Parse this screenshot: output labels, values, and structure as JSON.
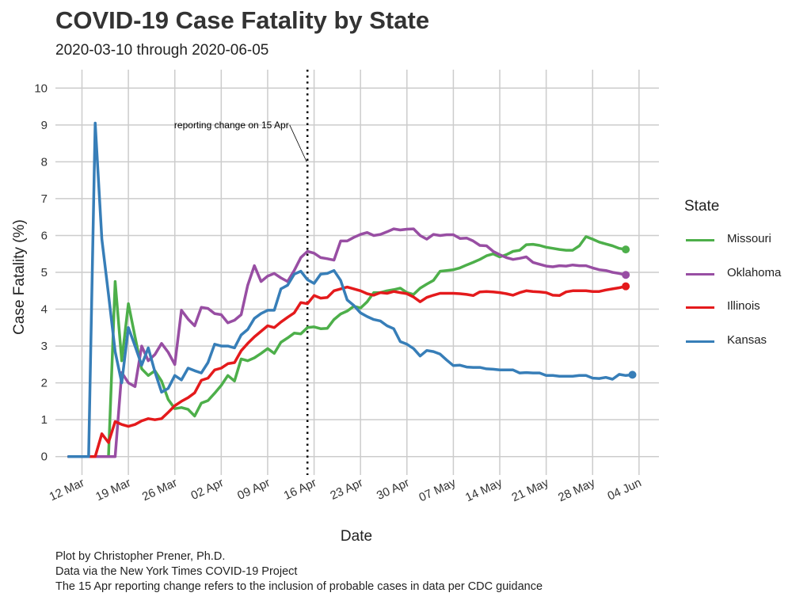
{
  "title": "COVID-19 Case Fatality by State",
  "subtitle": "2020-03-10 through 2020-06-05",
  "captions": [
    "Plot by Christopher Prener, Ph.D.",
    "Data via the New York Times COVID-19 Project",
    "The 15 Apr reporting change refers to the inclusion of probable cases in data per CDC guidance"
  ],
  "legend": {
    "title": "State",
    "items": [
      {
        "name": "Missouri",
        "color": "#4daf4a"
      },
      {
        "name": "Oklahoma",
        "color": "#984ea3"
      },
      {
        "name": "Illinois",
        "color": "#e41a1c"
      },
      {
        "name": "Kansas",
        "color": "#377eb8"
      }
    ]
  },
  "chart_data": {
    "type": "line",
    "title": "COVID-19 Case Fatality by State",
    "subtitle": "2020-03-10 through 2020-06-05",
    "xlabel": "Date",
    "ylabel": "Case Fatality (%)",
    "xlim": [
      "2020-03-08",
      "2020-06-07"
    ],
    "ylim": [
      -0.5,
      10.5
    ],
    "yticks": [
      0,
      1,
      2,
      3,
      4,
      5,
      6,
      7,
      8,
      9,
      10
    ],
    "xticks": [
      {
        "date": "2020-03-12",
        "label": "12 Mar"
      },
      {
        "date": "2020-03-19",
        "label": "19 Mar"
      },
      {
        "date": "2020-03-26",
        "label": "26 Mar"
      },
      {
        "date": "2020-04-02",
        "label": "02 Apr"
      },
      {
        "date": "2020-04-09",
        "label": "09 Apr"
      },
      {
        "date": "2020-04-16",
        "label": "16 Apr"
      },
      {
        "date": "2020-04-23",
        "label": "23 Apr"
      },
      {
        "date": "2020-04-30",
        "label": "30 Apr"
      },
      {
        "date": "2020-05-07",
        "label": "07 May"
      },
      {
        "date": "2020-05-14",
        "label": "14 May"
      },
      {
        "date": "2020-05-21",
        "label": "21 May"
      },
      {
        "date": "2020-05-28",
        "label": "28 May"
      },
      {
        "date": "2020-06-04",
        "label": "04 Jun"
      }
    ],
    "grid": true,
    "legend_position": "right",
    "annotation": {
      "label": "reporting change on 15 Apr",
      "date": "2020-04-15",
      "label_date": "2020-04-11",
      "label_y": 9,
      "pointer_y": 8
    },
    "series": [
      {
        "name": "Missouri",
        "color": "#4daf4a",
        "start": "2020-03-10",
        "values": [
          0,
          0,
          0,
          0,
          0,
          0,
          0,
          4.75,
          2.6,
          4.15,
          3.25,
          2.38,
          2.2,
          2.33,
          2.05,
          1.55,
          1.3,
          1.33,
          1.28,
          1.1,
          1.45,
          1.52,
          1.72,
          1.93,
          2.2,
          2.05,
          2.65,
          2.6,
          2.68,
          2.8,
          2.93,
          2.8,
          3.1,
          3.22,
          3.35,
          3.33,
          3.5,
          3.52,
          3.47,
          3.48,
          3.72,
          3.87,
          3.95,
          4.08,
          4.03,
          4.2,
          4.45,
          4.45,
          4.5,
          4.53,
          4.57,
          4.45,
          4.4,
          4.57,
          4.68,
          4.78,
          5.03,
          5.05,
          5.07,
          5.12,
          5.2,
          5.27,
          5.35,
          5.45,
          5.5,
          5.42,
          5.48,
          5.57,
          5.6,
          5.75,
          5.76,
          5.73,
          5.68,
          5.65,
          5.62,
          5.6,
          5.6,
          5.72,
          5.97,
          5.9,
          5.82,
          5.77,
          5.72,
          5.65,
          5.62
        ]
      },
      {
        "name": "Oklahoma",
        "color": "#984ea3",
        "start": "2020-03-10",
        "values": [
          0,
          0,
          0,
          0,
          0,
          0,
          0,
          0,
          2.28,
          2.0,
          1.9,
          3.0,
          2.6,
          2.77,
          3.07,
          2.83,
          2.5,
          3.97,
          3.73,
          3.55,
          4.05,
          4.02,
          3.88,
          3.85,
          3.63,
          3.7,
          3.85,
          4.65,
          5.18,
          4.75,
          4.9,
          4.97,
          4.85,
          4.75,
          5.05,
          5.4,
          5.57,
          5.52,
          5.4,
          5.37,
          5.33,
          5.85,
          5.85,
          5.95,
          6.03,
          6.08,
          6.0,
          6.03,
          6.1,
          6.18,
          6.15,
          6.17,
          6.18,
          6.0,
          5.9,
          6.03,
          6.0,
          6.02,
          6.02,
          5.92,
          5.93,
          5.85,
          5.73,
          5.72,
          5.57,
          5.48,
          5.4,
          5.35,
          5.38,
          5.42,
          5.27,
          5.22,
          5.17,
          5.15,
          5.18,
          5.17,
          5.2,
          5.18,
          5.18,
          5.12,
          5.07,
          5.05,
          5.0,
          4.97,
          4.93
        ]
      },
      {
        "name": "Illinois",
        "color": "#e41a1c",
        "start": "2020-03-10",
        "values": [
          0,
          0,
          0,
          0,
          0,
          0.62,
          0.38,
          0.95,
          0.87,
          0.82,
          0.87,
          0.97,
          1.03,
          1.0,
          1.03,
          1.2,
          1.38,
          1.5,
          1.6,
          1.73,
          2.07,
          2.13,
          2.35,
          2.4,
          2.52,
          2.55,
          2.87,
          3.07,
          3.25,
          3.4,
          3.55,
          3.5,
          3.65,
          3.78,
          3.9,
          4.18,
          4.15,
          4.37,
          4.3,
          4.32,
          4.5,
          4.55,
          4.6,
          4.55,
          4.5,
          4.42,
          4.38,
          4.45,
          4.43,
          4.48,
          4.45,
          4.42,
          4.33,
          4.2,
          4.32,
          4.38,
          4.43,
          4.43,
          4.43,
          4.42,
          4.4,
          4.37,
          4.47,
          4.48,
          4.47,
          4.45,
          4.42,
          4.38,
          4.45,
          4.5,
          4.48,
          4.47,
          4.45,
          4.38,
          4.37,
          4.47,
          4.5,
          4.5,
          4.5,
          4.48,
          4.48,
          4.52,
          4.55,
          4.58,
          4.62
        ]
      },
      {
        "name": "Kansas",
        "color": "#377eb8",
        "start": "2020-03-10",
        "values": [
          0,
          0,
          0,
          0,
          9.05,
          5.9,
          4.4,
          2.85,
          2.0,
          3.5,
          3.0,
          2.48,
          2.95,
          2.3,
          1.75,
          1.85,
          2.2,
          2.08,
          2.4,
          2.33,
          2.27,
          2.55,
          3.05,
          3.0,
          3.0,
          2.95,
          3.3,
          3.45,
          3.75,
          3.88,
          3.97,
          3.97,
          4.55,
          4.65,
          4.95,
          5.03,
          4.8,
          4.7,
          4.95,
          4.97,
          5.05,
          4.78,
          4.25,
          4.1,
          3.9,
          3.8,
          3.72,
          3.68,
          3.55,
          3.47,
          3.12,
          3.05,
          2.93,
          2.73,
          2.88,
          2.85,
          2.78,
          2.62,
          2.47,
          2.48,
          2.43,
          2.42,
          2.42,
          2.38,
          2.37,
          2.35,
          2.35,
          2.35,
          2.27,
          2.28,
          2.27,
          2.27,
          2.2,
          2.2,
          2.18,
          2.18,
          2.18,
          2.2,
          2.2,
          2.13,
          2.12,
          2.15,
          2.1,
          2.23,
          2.2,
          2.22
        ]
      }
    ]
  }
}
